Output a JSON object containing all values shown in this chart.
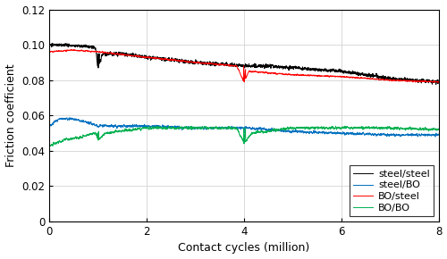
{
  "title": "",
  "xlabel": "Contact cycles (million)",
  "ylabel": "Friction coefficient",
  "xlim": [
    0,
    8
  ],
  "ylim": [
    0,
    0.12
  ],
  "xticks": [
    0,
    2,
    4,
    6,
    8
  ],
  "yticks": [
    0,
    0.02,
    0.04,
    0.06,
    0.08,
    0.1,
    0.12
  ],
  "legend_labels": [
    "steel/steel",
    "steel/BO",
    "BO/steel",
    "BO/BO"
  ],
  "colors": {
    "steel_steel": "#000000",
    "steel_BO": "#0070c0",
    "BO_steel": "#ff0000",
    "BO_BO": "#00b050"
  },
  "background": "#ffffff",
  "grid_color": "#d3d3d3"
}
